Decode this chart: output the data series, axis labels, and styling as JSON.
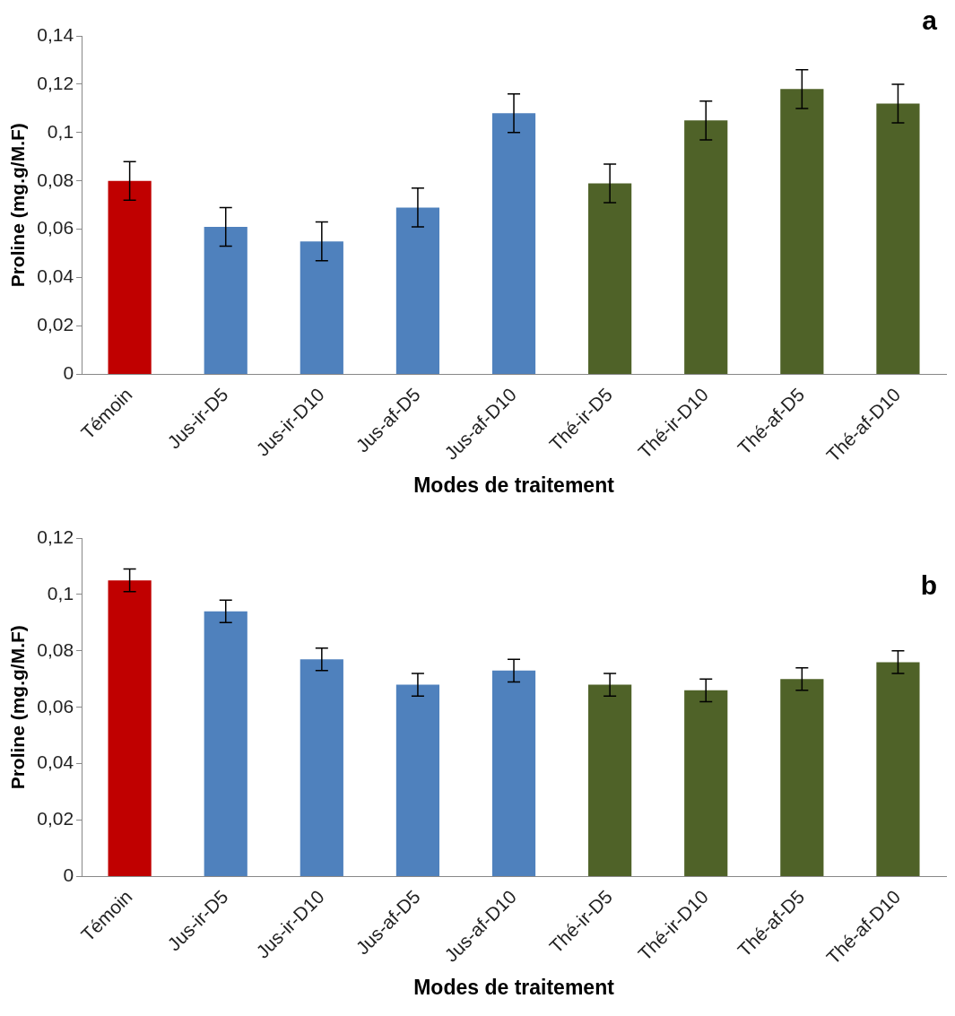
{
  "chart_data": [
    {
      "type": "bar",
      "xlabel": "Modes de traitement",
      "ylabel": "Proline (mg.g/M.F)",
      "annotations": [
        "a"
      ],
      "categories": [
        "Témoin",
        "Jus-ir-D5",
        "Jus-ir-D10",
        "Jus-af-D5",
        "Jus-af-D10",
        "Thé-ir-D5",
        "Thé-ir-D10",
        "Thé-af-D5",
        "Thé-af-D10"
      ],
      "values": [
        0.08,
        0.061,
        0.055,
        0.069,
        0.108,
        0.079,
        0.105,
        0.118,
        0.112
      ],
      "errors": [
        0.008,
        0.008,
        0.008,
        0.008,
        0.008,
        0.008,
        0.008,
        0.008,
        0.008
      ],
      "colors": [
        "#c00000",
        "#4f81bd",
        "#4f81bd",
        "#4f81bd",
        "#4f81bd",
        "#4f6228",
        "#4f6228",
        "#4f6228",
        "#4f6228"
      ],
      "ylim": [
        0,
        0.14
      ],
      "yticks": [
        0,
        {
          "value": 0.02,
          "label": "0,02"
        },
        {
          "value": 0.04,
          "label": "0,04"
        },
        {
          "value": 0.06,
          "label": "0,06"
        },
        {
          "value": 0.08,
          "label": "0,08"
        },
        {
          "value": 0.1,
          "label": "0,1"
        },
        {
          "value": 0.12,
          "label": "0,12"
        },
        {
          "value": 0.14,
          "label": "0,14"
        }
      ],
      "grid": false,
      "legend": false
    },
    {
      "type": "bar",
      "xlabel": "Modes de traitement",
      "ylabel": "Proline (mg.g/M.F)",
      "annotations": [
        "b"
      ],
      "categories": [
        "Témoin",
        "Jus-ir-D5",
        "Jus-ir-D10",
        "Jus-af-D5",
        "Jus-af-D10",
        "Thé-ir-D5",
        "Thé-ir-D10",
        "Thé-af-D5",
        "Thé-af-D10"
      ],
      "values": [
        0.105,
        0.094,
        0.077,
        0.068,
        0.073,
        0.068,
        0.066,
        0.07,
        0.076
      ],
      "errors": [
        0.004,
        0.004,
        0.004,
        0.004,
        0.004,
        0.004,
        0.004,
        0.004,
        0.004
      ],
      "colors": [
        "#c00000",
        "#4f81bd",
        "#4f81bd",
        "#4f81bd",
        "#4f81bd",
        "#4f6228",
        "#4f6228",
        "#4f6228",
        "#4f6228"
      ],
      "ylim": [
        0,
        0.12
      ],
      "yticks": [
        0,
        {
          "value": 0.02,
          "label": "0,02"
        },
        {
          "value": 0.04,
          "label": "0,04"
        },
        {
          "value": 0.06,
          "label": "0,06"
        },
        {
          "value": 0.08,
          "label": "0,08"
        },
        {
          "value": 0.1,
          "label": "0,1"
        },
        {
          "value": 0.12,
          "label": "0,12"
        }
      ],
      "grid": false,
      "legend": false
    }
  ]
}
